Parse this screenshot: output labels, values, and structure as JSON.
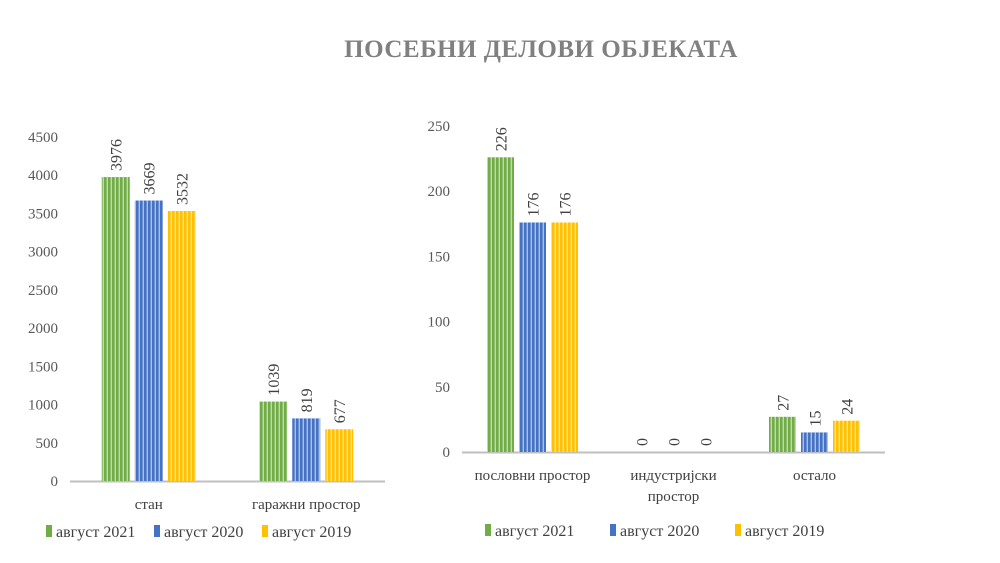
{
  "title": "ПОСЕБНИ ДЕЛОВИ ОБЈЕКАТА",
  "colors": {
    "август 2021": "#70AD47",
    "август 2020": "#4472C4",
    "август 2019": "#FFC000"
  },
  "chart_data": [
    {
      "type": "bar",
      "categories": [
        "стан",
        "гаражни простор"
      ],
      "series": [
        {
          "name": "август 2021",
          "values": [
            3976,
            1039
          ]
        },
        {
          "name": "август 2020",
          "values": [
            3669,
            819
          ]
        },
        {
          "name": "август 2019",
          "values": [
            3532,
            677
          ]
        }
      ],
      "ylim": [
        0,
        4500
      ],
      "yticks": [
        0,
        500,
        1000,
        1500,
        2000,
        2500,
        3000,
        3500,
        4000,
        4500
      ],
      "grid": false,
      "legend": "bottom"
    },
    {
      "type": "bar",
      "categories": [
        "пословни простор",
        "индустријски простор",
        "остало"
      ],
      "series": [
        {
          "name": "август 2021",
          "values": [
            226,
            0,
            27
          ]
        },
        {
          "name": "август 2020",
          "values": [
            176,
            0,
            15
          ]
        },
        {
          "name": "август 2019",
          "values": [
            176,
            0,
            24
          ]
        }
      ],
      "ylim": [
        0,
        250
      ],
      "yticks": [
        0,
        50,
        100,
        150,
        200,
        250
      ],
      "grid": false,
      "legend": "bottom"
    }
  ]
}
